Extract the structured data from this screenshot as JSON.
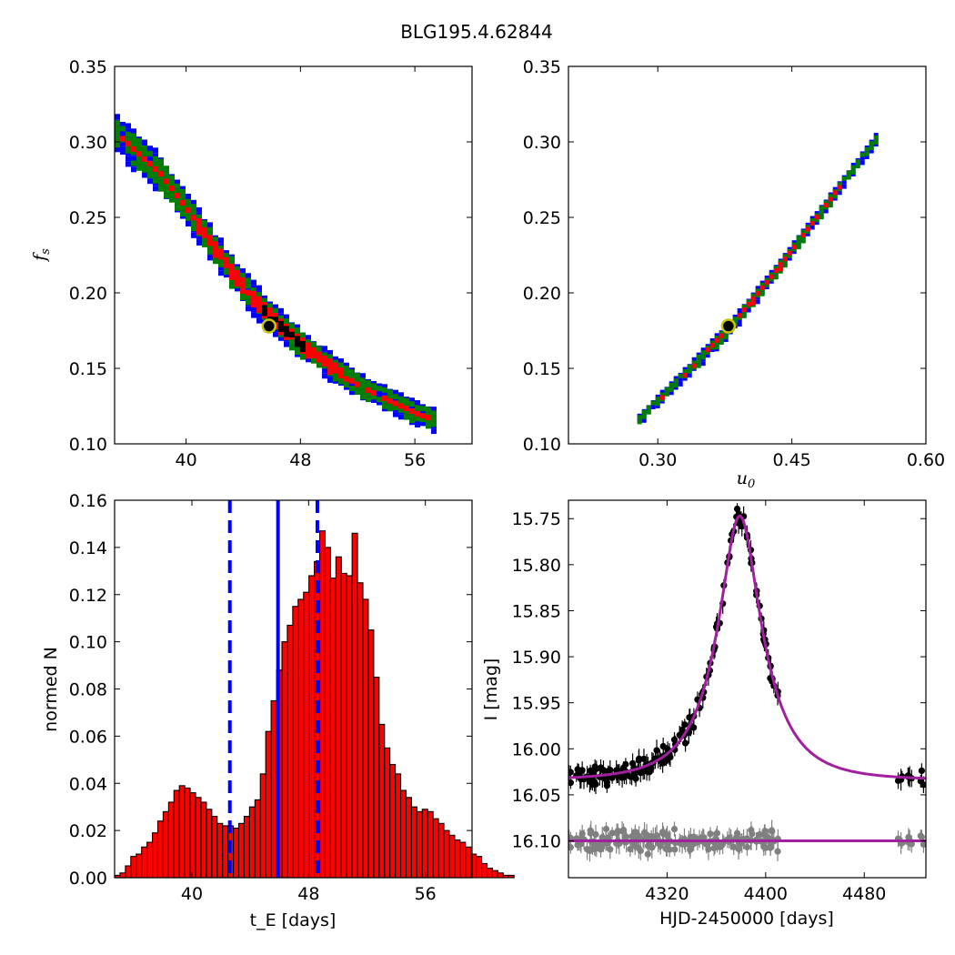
{
  "figure_title": "BLG195.4.62844",
  "colors": {
    "blue": "#0000ff",
    "green": "#007f00",
    "red": "#ff0000",
    "black": "#000000",
    "purple": "#a020a0",
    "gray": "#808080",
    "marker_ring": "#c8c800"
  },
  "chart_data": [
    {
      "panel": "top-left",
      "type": "heatmap",
      "description_levels": [
        "blue",
        "green",
        "red",
        "black"
      ],
      "x_ticks": [
        "40",
        "48",
        "56"
      ],
      "x_tick_values": [
        40,
        48,
        56
      ],
      "y_ticks": [
        "0.10",
        "0.15",
        "0.20",
        "0.25",
        "0.30",
        "0.35"
      ],
      "y_tick_values": [
        0.1,
        0.15,
        0.2,
        0.25,
        0.3,
        0.35
      ],
      "xlim": [
        35,
        60
      ],
      "ylim": [
        0.1,
        0.35
      ],
      "xlabel": "",
      "ylabel": "f_s",
      "best_fit": {
        "x": 45.8,
        "y": 0.178
      },
      "band": {
        "x": [
          35,
          38,
          40,
          42,
          44,
          46,
          48,
          50,
          52,
          54,
          56,
          57.5
        ],
        "y": [
          0.306,
          0.28,
          0.255,
          0.228,
          0.203,
          0.183,
          0.166,
          0.152,
          0.139,
          0.13,
          0.121,
          0.116
        ]
      }
    },
    {
      "panel": "top-right",
      "type": "heatmap",
      "x_ticks": [
        "0.30",
        "0.45",
        "0.60"
      ],
      "x_tick_values": [
        0.3,
        0.45,
        0.6
      ],
      "y_ticks": [
        "0.10",
        "0.15",
        "0.20",
        "0.25",
        "0.30",
        "0.35"
      ],
      "y_tick_values": [
        0.1,
        0.15,
        0.2,
        0.25,
        0.3,
        0.35
      ],
      "xlim": [
        0.2,
        0.6
      ],
      "ylim": [
        0.1,
        0.35
      ],
      "xlabel": "u_0",
      "ylabel": "",
      "best_fit": {
        "x": 0.379,
        "y": 0.178
      },
      "band": {
        "x": [
          0.277,
          0.33,
          0.379,
          0.43,
          0.48,
          0.545
        ],
        "y": [
          0.117,
          0.148,
          0.178,
          0.215,
          0.254,
          0.305
        ]
      }
    },
    {
      "panel": "bottom-left",
      "type": "bar",
      "xlim": [
        34.7,
        59.2
      ],
      "ylim": [
        0,
        0.16
      ],
      "x_ticks": [
        "40",
        "48",
        "56"
      ],
      "x_tick_values": [
        40,
        48,
        56
      ],
      "y_ticks": [
        "0.00",
        "0.02",
        "0.04",
        "0.06",
        "0.08",
        "0.10",
        "0.12",
        "0.14",
        "0.16"
      ],
      "y_tick_values": [
        0,
        0.02,
        0.04,
        0.06,
        0.08,
        0.1,
        0.12,
        0.14,
        0.16
      ],
      "xlabel": "t_E  [days]",
      "ylabel": "normed N",
      "bin_start": 34.7,
      "bin_width": 0.37,
      "values": [
        0.001,
        0.002,
        0.005,
        0.009,
        0.01,
        0.013,
        0.015,
        0.019,
        0.024,
        0.028,
        0.032,
        0.037,
        0.039,
        0.038,
        0.036,
        0.034,
        0.032,
        0.029,
        0.026,
        0.023,
        0.022,
        0.022,
        0.021,
        0.023,
        0.026,
        0.03,
        0.033,
        0.044,
        0.062,
        0.075,
        0.088,
        0.1,
        0.107,
        0.115,
        0.118,
        0.121,
        0.128,
        0.134,
        0.147,
        0.14,
        0.127,
        0.136,
        0.129,
        0.128,
        0.146,
        0.125,
        0.118,
        0.105,
        0.085,
        0.065,
        0.055,
        0.048,
        0.044,
        0.037,
        0.034,
        0.03,
        0.028,
        0.029,
        0.028,
        0.025,
        0.023,
        0.02,
        0.018,
        0.016,
        0.015,
        0.013,
        0.01,
        0.009,
        0.006,
        0.004,
        0.003,
        0.002,
        0.001,
        0.001
      ],
      "median": 45.9,
      "lower": 42.6,
      "upper": 48.6
    },
    {
      "panel": "bottom-right",
      "type": "scatter",
      "xlim": [
        4240,
        4530
      ],
      "ylim": [
        16.14,
        15.73
      ],
      "x_ticks": [
        "4320",
        "4400",
        "4480"
      ],
      "x_tick_values": [
        4320,
        4400,
        4480
      ],
      "y_ticks": [
        "15.75",
        "15.80",
        "15.85",
        "15.90",
        "15.95",
        "16.00",
        "16.05",
        "16.10"
      ],
      "y_tick_values": [
        15.75,
        15.8,
        15.85,
        15.9,
        15.95,
        16.0,
        16.05,
        16.1
      ],
      "xlabel": "HJD-2450000 [days]",
      "ylabel": "I [mag]",
      "model": {
        "baseline": 16.034,
        "peak": 15.747,
        "t0": 4379,
        "tE": 45.9,
        "u0": 0.379
      },
      "residual_offset": 16.1,
      "data_segments": [
        {
          "t_from": 4240,
          "t_to": 4410,
          "n": 170
        },
        {
          "t_from": 4507,
          "t_to": 4530,
          "n": 10
        }
      ]
    }
  ]
}
